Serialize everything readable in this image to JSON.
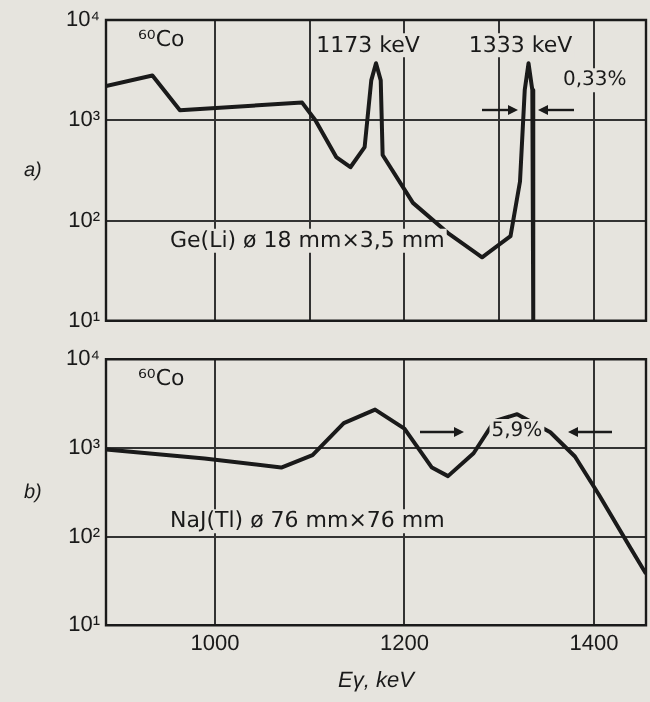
{
  "chart_data": [
    {
      "type": "line",
      "log": "y",
      "grid": true,
      "marker": "none",
      "tick_labels": "y",
      "xlim": [
        885,
        1455
      ],
      "xticks": [
        1000,
        1100,
        1200,
        1300,
        1400
      ],
      "ylim": [
        10,
        10000
      ],
      "yticks": [
        {
          "value": 10,
          "label": "10¹"
        },
        {
          "value": 100,
          "label": "10²"
        },
        {
          "value": 1000,
          "label": "10³"
        },
        {
          "value": 10000,
          "label": "10⁴"
        }
      ],
      "series": [
        {
          "color": "#1a1a1a",
          "x": [
            885,
            934,
            963,
            1092,
            1106,
            1128,
            1143,
            1158,
            1165,
            1170,
            1175,
            1177,
            1209,
            1246,
            1282,
            1312,
            1322,
            1327,
            1331,
            1335,
            1336
          ],
          "values": [
            2200,
            2800,
            1260,
            1500,
            1000,
            430,
            340,
            540,
            2500,
            3700,
            2500,
            450,
            150,
            75,
            43,
            70,
            245,
            2000,
            3700,
            2000,
            10
          ]
        }
      ],
      "annotations": [
        "⁶⁰Co",
        "a)",
        "Ge(Li) ø 18 mm×3,5 mm",
        {
          "text": "1173 keV",
          "x": 1170,
          "y": 3700
        },
        {
          "text": "1333 keV",
          "x": 1331,
          "y": 3700
        },
        "0,33%"
      ]
    },
    {
      "type": "line",
      "log": "y",
      "grid": true,
      "marker": "none",
      "xlabel": "Eγ, keV",
      "xlim": [
        885,
        1455
      ],
      "xticks": [
        1000,
        1200,
        1400
      ],
      "ylim": [
        10,
        10000
      ],
      "yticks": [
        {
          "value": 10,
          "label": "10¹"
        },
        {
          "value": 100,
          "label": "10²"
        },
        {
          "value": 1000,
          "label": "10³"
        },
        {
          "value": 10000,
          "label": "10⁴"
        }
      ],
      "series": [
        {
          "color": "#1a1a1a",
          "x": [
            885,
            989,
            1070,
            1103,
            1136,
            1169,
            1200,
            1229,
            1246,
            1273,
            1295,
            1319,
            1354,
            1380,
            1405,
            1438,
            1455
          ],
          "values": [
            960,
            760,
            600,
            830,
            1900,
            2700,
            1650,
            600,
            480,
            870,
            2000,
            2400,
            1500,
            800,
            300,
            76,
            38
          ]
        }
      ],
      "annotations": [
        "⁶⁰Co",
        "b)",
        "NaJ(Tl) ø 76 mm×76 mm",
        "5,9%"
      ]
    }
  ]
}
